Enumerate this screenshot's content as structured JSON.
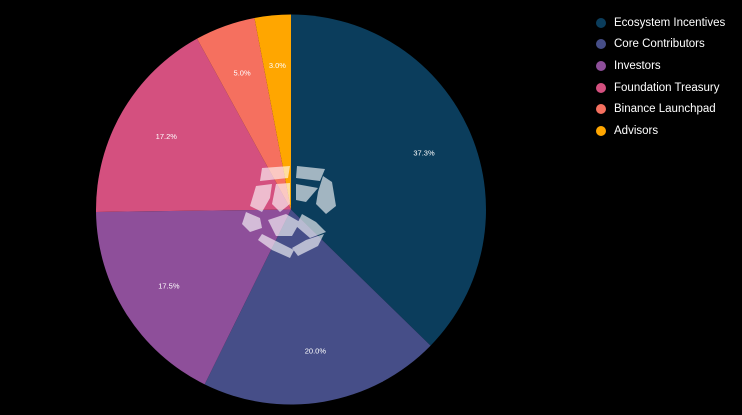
{
  "chart_data": {
    "type": "pie",
    "slices": [
      {
        "label": "Ecosystem Incentives",
        "value": 37.3,
        "display": "37.3%",
        "color": "#0b3d5c"
      },
      {
        "label": "Core Contributors",
        "value": 20.0,
        "display": "20.0%",
        "color": "#464e88"
      },
      {
        "label": "Investors",
        "value": 17.5,
        "display": "17.5%",
        "color": "#8e4f9a"
      },
      {
        "label": "Foundation Treasury",
        "value": 17.2,
        "display": "17.2%",
        "color": "#d4507f"
      },
      {
        "label": "Binance Launchpad",
        "value": 5.0,
        "display": "5.0%",
        "color": "#f5705f"
      },
      {
        "label": "Advisors",
        "value": 3.0,
        "display": "3.0%",
        "color": "#ffa600"
      }
    ],
    "legend_position": "top-right",
    "watermark": "logo"
  }
}
